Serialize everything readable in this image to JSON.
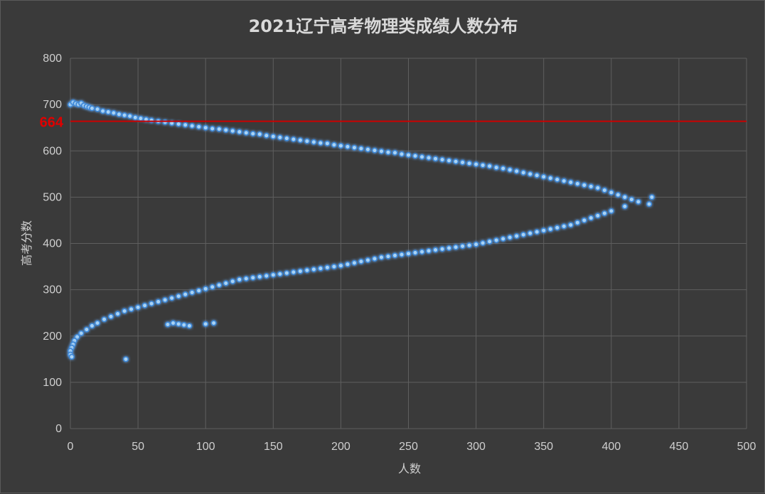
{
  "chart_data": {
    "type": "scatter",
    "title": "2021辽宁高考物理类成绩人数分布",
    "xlabel": "人数",
    "ylabel": "高考分数",
    "xlim": [
      0,
      500
    ],
    "ylim": [
      0,
      800
    ],
    "xticks": [
      "0",
      "50",
      "100",
      "150",
      "200",
      "250",
      "300",
      "350",
      "400",
      "450",
      "500"
    ],
    "yticks": [
      "0",
      "100",
      "200",
      "300",
      "400",
      "500",
      "600",
      "700",
      "800"
    ],
    "grid": true,
    "reference_line": {
      "y": 664,
      "label": "664",
      "color": "#cc0000"
    },
    "colors": {
      "point": "#a9d3f5",
      "glow": "#3b86d6",
      "background": "#3a3a3a",
      "grid": "#5f5f5f"
    },
    "series": [
      {
        "points": [
          [
            0,
            700
          ],
          [
            2,
            705
          ],
          [
            4,
            702
          ],
          [
            6,
            700
          ],
          [
            8,
            703
          ],
          [
            10,
            698
          ],
          [
            12,
            696
          ],
          [
            14,
            694
          ],
          [
            16,
            692
          ],
          [
            20,
            690
          ],
          [
            24,
            686
          ],
          [
            28,
            684
          ],
          [
            32,
            682
          ],
          [
            36,
            679
          ],
          [
            40,
            677
          ],
          [
            44,
            675
          ],
          [
            48,
            672
          ],
          [
            52,
            670
          ],
          [
            56,
            668
          ],
          [
            60,
            666
          ],
          [
            65,
            664
          ],
          [
            70,
            662
          ],
          [
            75,
            660
          ],
          [
            80,
            658
          ],
          [
            85,
            656
          ],
          [
            90,
            654
          ],
          [
            95,
            652
          ],
          [
            100,
            650
          ],
          [
            105,
            648
          ],
          [
            110,
            647
          ],
          [
            115,
            645
          ],
          [
            120,
            643
          ],
          [
            125,
            641
          ],
          [
            130,
            639
          ],
          [
            135,
            637
          ],
          [
            140,
            636
          ],
          [
            145,
            633
          ],
          [
            150,
            631
          ],
          [
            155,
            629
          ],
          [
            160,
            627
          ],
          [
            165,
            625
          ],
          [
            170,
            623
          ],
          [
            175,
            621
          ],
          [
            180,
            619
          ],
          [
            185,
            617
          ],
          [
            190,
            616
          ],
          [
            195,
            613
          ],
          [
            200,
            611
          ],
          [
            205,
            609
          ],
          [
            210,
            607
          ],
          [
            215,
            605
          ],
          [
            220,
            603
          ],
          [
            225,
            601
          ],
          [
            230,
            599
          ],
          [
            235,
            597
          ],
          [
            240,
            596
          ],
          [
            245,
            593
          ],
          [
            250,
            591
          ],
          [
            255,
            589
          ],
          [
            260,
            587
          ],
          [
            265,
            585
          ],
          [
            270,
            583
          ],
          [
            275,
            581
          ],
          [
            280,
            579
          ],
          [
            285,
            577
          ],
          [
            290,
            575
          ],
          [
            295,
            573
          ],
          [
            300,
            571
          ],
          [
            305,
            569
          ],
          [
            310,
            567
          ],
          [
            315,
            564
          ],
          [
            320,
            562
          ],
          [
            325,
            559
          ],
          [
            330,
            556
          ],
          [
            335,
            553
          ],
          [
            340,
            550
          ],
          [
            345,
            547
          ],
          [
            350,
            544
          ],
          [
            355,
            541
          ],
          [
            360,
            538
          ],
          [
            365,
            535
          ],
          [
            370,
            532
          ],
          [
            375,
            529
          ],
          [
            380,
            526
          ],
          [
            385,
            523
          ],
          [
            390,
            520
          ],
          [
            395,
            515
          ],
          [
            400,
            510
          ],
          [
            405,
            505
          ],
          [
            410,
            500
          ],
          [
            415,
            495
          ],
          [
            420,
            490
          ],
          [
            428,
            485
          ],
          [
            430,
            500
          ],
          [
            410,
            480
          ],
          [
            400,
            470
          ],
          [
            395,
            465
          ],
          [
            390,
            460
          ],
          [
            385,
            455
          ],
          [
            380,
            450
          ],
          [
            375,
            445
          ],
          [
            370,
            440
          ],
          [
            365,
            437
          ],
          [
            360,
            434
          ],
          [
            355,
            431
          ],
          [
            350,
            428
          ],
          [
            345,
            425
          ],
          [
            340,
            422
          ],
          [
            335,
            419
          ],
          [
            330,
            416
          ],
          [
            325,
            413
          ],
          [
            320,
            410
          ],
          [
            315,
            407
          ],
          [
            310,
            404
          ],
          [
            305,
            401
          ],
          [
            300,
            398
          ],
          [
            295,
            396
          ],
          [
            290,
            394
          ],
          [
            285,
            392
          ],
          [
            280,
            390
          ],
          [
            275,
            388
          ],
          [
            270,
            386
          ],
          [
            265,
            384
          ],
          [
            260,
            382
          ],
          [
            255,
            380
          ],
          [
            250,
            378
          ],
          [
            245,
            376
          ],
          [
            240,
            374
          ],
          [
            235,
            372
          ],
          [
            230,
            370
          ],
          [
            225,
            367
          ],
          [
            220,
            364
          ],
          [
            215,
            361
          ],
          [
            210,
            358
          ],
          [
            205,
            355
          ],
          [
            200,
            352
          ],
          [
            195,
            350
          ],
          [
            190,
            348
          ],
          [
            185,
            346
          ],
          [
            180,
            344
          ],
          [
            175,
            342
          ],
          [
            170,
            340
          ],
          [
            165,
            338
          ],
          [
            160,
            336
          ],
          [
            155,
            334
          ],
          [
            150,
            332
          ],
          [
            145,
            330
          ],
          [
            140,
            328
          ],
          [
            135,
            326
          ],
          [
            130,
            324
          ],
          [
            125,
            322
          ],
          [
            120,
            318
          ],
          [
            115,
            314
          ],
          [
            110,
            310
          ],
          [
            105,
            306
          ],
          [
            100,
            302
          ],
          [
            95,
            298
          ],
          [
            90,
            294
          ],
          [
            85,
            290
          ],
          [
            80,
            286
          ],
          [
            75,
            282
          ],
          [
            70,
            278
          ],
          [
            65,
            274
          ],
          [
            60,
            270
          ],
          [
            55,
            266
          ],
          [
            50,
            262
          ],
          [
            45,
            258
          ],
          [
            40,
            254
          ],
          [
            35,
            248
          ],
          [
            30,
            242
          ],
          [
            25,
            236
          ],
          [
            20,
            228
          ],
          [
            16,
            222
          ],
          [
            12,
            214
          ],
          [
            8,
            206
          ],
          [
            5,
            198
          ],
          [
            3,
            190
          ],
          [
            2,
            182
          ],
          [
            1,
            175
          ],
          [
            0,
            168
          ],
          [
            0,
            160
          ],
          [
            1,
            155
          ],
          [
            72,
            225
          ],
          [
            76,
            228
          ],
          [
            80,
            226
          ],
          [
            84,
            224
          ],
          [
            88,
            222
          ],
          [
            100,
            226
          ],
          [
            106,
            228
          ],
          [
            41,
            150
          ]
        ]
      }
    ]
  }
}
